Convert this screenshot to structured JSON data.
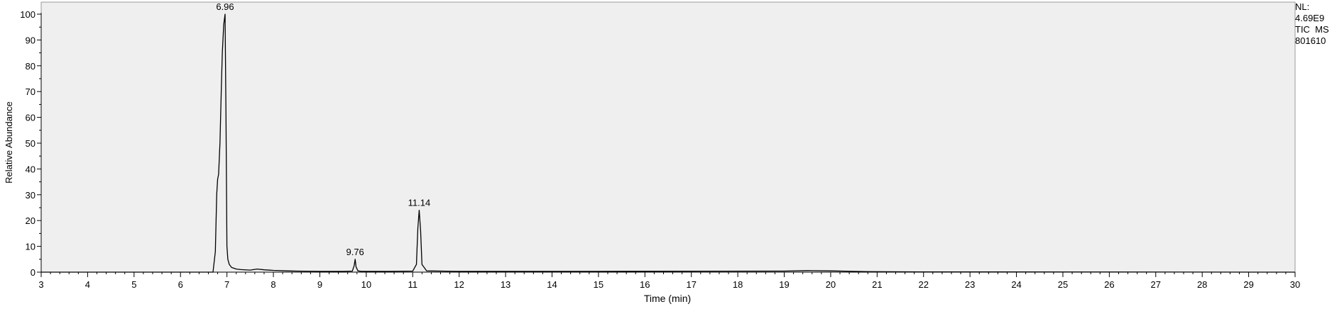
{
  "side_annotation": {
    "line1": "NL:",
    "line2": "4.69E9",
    "line3": "TIC  MS",
    "line4": "801610"
  },
  "chart_data": {
    "type": "line",
    "title": "",
    "xlabel": "Time (min)",
    "ylabel": "Relative Abundance",
    "xlim": [
      3,
      30
    ],
    "ylim": [
      0,
      100
    ],
    "x_ticks": [
      3,
      4,
      5,
      6,
      7,
      8,
      9,
      10,
      11,
      12,
      13,
      14,
      15,
      16,
      17,
      18,
      19,
      20,
      21,
      22,
      23,
      24,
      25,
      26,
      27,
      28,
      29,
      30
    ],
    "y_ticks": [
      0,
      10,
      20,
      30,
      40,
      50,
      60,
      70,
      80,
      90,
      100
    ],
    "grid": false,
    "peak_labels": [
      {
        "text": "6.96",
        "x": 6.96,
        "y": 100
      },
      {
        "text": "9.76",
        "x": 9.76,
        "y": 5
      },
      {
        "text": "11.14",
        "x": 11.14,
        "y": 24
      }
    ],
    "series": [
      {
        "x": [
          3.0,
          6.7,
          6.75,
          6.78,
          6.8,
          6.82,
          6.85,
          6.88,
          6.9,
          6.93,
          6.96,
          6.98,
          7.0,
          7.02,
          7.05,
          7.1,
          7.2,
          7.3,
          7.5,
          7.65,
          7.8,
          8.0,
          8.3,
          8.5,
          9.0,
          9.5,
          9.7,
          9.74,
          9.76,
          9.78,
          9.82,
          9.9,
          10.5,
          11.0,
          11.08,
          11.11,
          11.14,
          11.17,
          11.2,
          11.3,
          12.0,
          15.0,
          19.0,
          19.5,
          20.0,
          20.5,
          20.8,
          22.0,
          26.0,
          30.0
        ],
        "y": [
          0,
          0,
          8,
          30,
          36,
          38,
          50,
          72,
          85,
          96,
          100,
          60,
          10,
          5,
          3,
          1.8,
          1.2,
          1.0,
          0.8,
          1.2,
          0.9,
          0.7,
          0.5,
          0.4,
          0.3,
          0.3,
          0.4,
          2.5,
          5.0,
          2.0,
          0.5,
          0.3,
          0.3,
          0.4,
          3.0,
          17,
          24,
          16,
          3,
          0.5,
          0.3,
          0.3,
          0.4,
          0.6,
          0.5,
          0.3,
          0.2,
          0.1,
          0.05,
          0
        ]
      }
    ]
  }
}
